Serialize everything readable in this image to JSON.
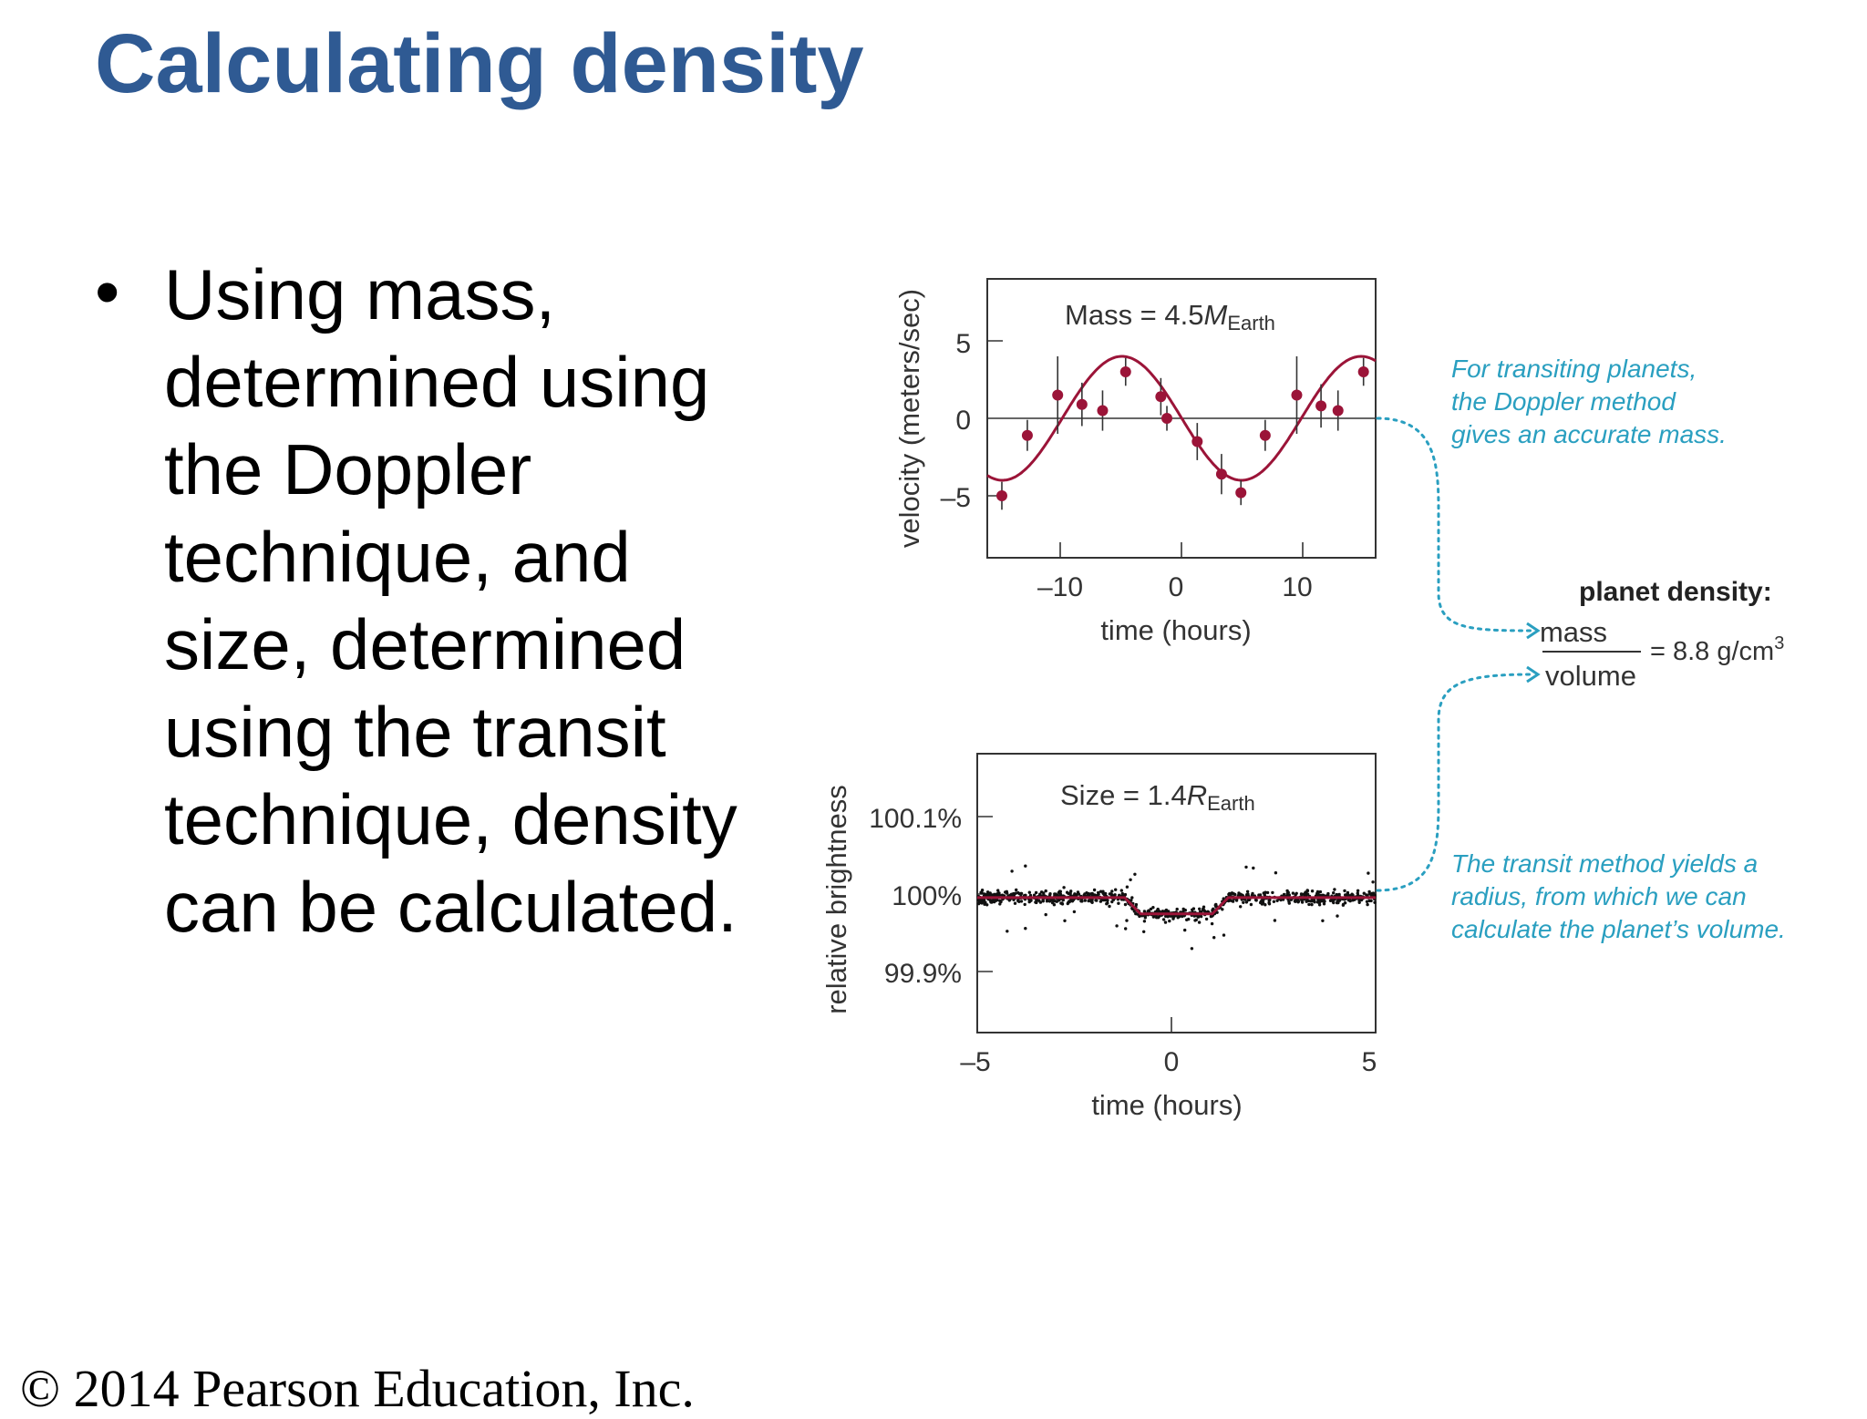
{
  "slide": {
    "title": "Calculating density",
    "bullets": [
      "Using mass, determined using the Doppler technique, and size, determined using the transit technique, density can be calculated."
    ],
    "copyright": "© 2014 Pearson Education, Inc."
  },
  "figure": {
    "accent_color": "#9b1438",
    "annotation_color": "#2a9fc0",
    "doppler": {
      "label_prefix": "Mass = 4.5",
      "label_var": "M",
      "label_sub": "Earth",
      "ylabel": "velocity (meters/sec)",
      "xlabel": "time (hours)",
      "xticks": [
        "–10",
        "0",
        "10"
      ],
      "yticks": [
        "5",
        "0",
        "–5"
      ],
      "xlim": [
        -16,
        16
      ],
      "ylim": [
        -9,
        9
      ],
      "amplitude": 4,
      "period_hours": 19.7,
      "phase_hours": -4.9,
      "points": [
        {
          "t": -14.8,
          "v": -5.0,
          "err": 0.9
        },
        {
          "t": -12.7,
          "v": -1.1,
          "err": 1.0
        },
        {
          "t": -10.2,
          "v": 1.5,
          "err": 2.5
        },
        {
          "t": -8.2,
          "v": 0.9,
          "err": 1.4
        },
        {
          "t": -6.5,
          "v": 0.5,
          "err": 1.3
        },
        {
          "t": -4.6,
          "v": 3.0,
          "err": 0.9
        },
        {
          "t": -1.7,
          "v": 1.4,
          "err": 1.2
        },
        {
          "t": -1.2,
          "v": 0.0,
          "err": 0.8
        },
        {
          "t": 1.3,
          "v": -1.5,
          "err": 1.2
        },
        {
          "t": 3.3,
          "v": -3.6,
          "err": 1.3
        },
        {
          "t": 4.9,
          "v": -4.8,
          "err": 0.8
        },
        {
          "t": 6.9,
          "v": -1.1,
          "err": 1.0
        },
        {
          "t": 9.5,
          "v": 1.5,
          "err": 2.5
        },
        {
          "t": 11.5,
          "v": 0.8,
          "err": 1.4
        },
        {
          "t": 12.9,
          "v": 0.5,
          "err": 1.3
        },
        {
          "t": 15.0,
          "v": 3.0,
          "err": 0.9
        }
      ]
    },
    "transit": {
      "label_prefix": "Size = 1.4",
      "label_var": "R",
      "label_sub": "Earth",
      "ylabel": "relative brightness",
      "xlabel": "time (hours)",
      "xticks": [
        "–5",
        "0",
        "5"
      ],
      "yticks": [
        "100.1%",
        "100%",
        "99.9%"
      ],
      "xlim": [
        -5,
        5
      ],
      "ylim": [
        99.85,
        100.16
      ],
      "dip_depth": 0.018,
      "dip_ingress_hours": [
        -1.3,
        -0.9
      ],
      "dip_egress_hours": [
        0.9,
        1.3
      ]
    },
    "annotations": {
      "doppler_note": [
        "For transiting planets,",
        "the Doppler method",
        "gives an accurate mass."
      ],
      "transit_note": [
        "The transit method yields a",
        "radius, from which we can",
        "calculate the planet’s volume."
      ]
    },
    "density": {
      "heading": "planet density:",
      "numerator": "mass",
      "denominator": "volume",
      "result_prefix": "= 8.8 g/cm",
      "result_sup": "3"
    }
  }
}
